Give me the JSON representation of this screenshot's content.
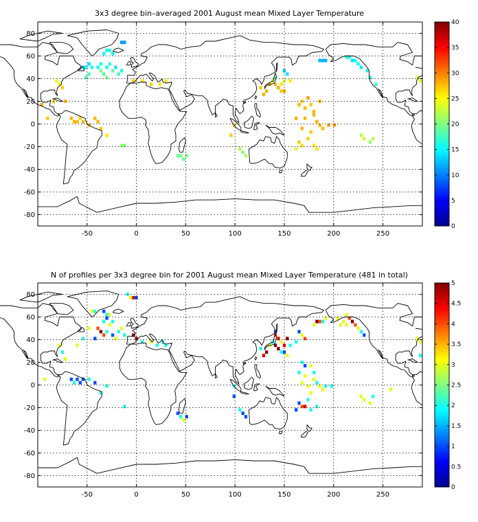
{
  "panels": [
    {
      "title": "3x3 degree bin–averaged 2001 August mean Mixed Layer Temperature",
      "colorbar": {
        "min": 0,
        "max": 40,
        "ticks": [
          0,
          5,
          10,
          15,
          20,
          25,
          30,
          35,
          40
        ],
        "labels": [
          "0",
          "5",
          "10",
          "15",
          "20",
          "25",
          "30",
          "35",
          "40"
        ]
      }
    },
    {
      "title": "N of profiles per 3x3 degree bin for 2001 August mean Mixed Layer Temperature  (481 in total)",
      "colorbar": {
        "min": 0,
        "max": 5,
        "ticks": [
          0,
          0.5,
          1,
          1.5,
          2,
          2.5,
          3,
          3.5,
          4,
          4.5,
          5
        ],
        "labels": [
          "0",
          "0.5",
          "1",
          "1.5",
          "2",
          "2.5",
          "3",
          "3.5",
          "4",
          "4.5",
          "5"
        ]
      }
    }
  ],
  "axes": {
    "xlim": [
      -100,
      290
    ],
    "ylim": [
      -90,
      90
    ],
    "xticks": [
      -50,
      0,
      50,
      100,
      150,
      200,
      250
    ],
    "xtick_labels": [
      "-50",
      "0",
      "50",
      "100",
      "150",
      "200",
      "250"
    ],
    "yticks": [
      -80,
      -60,
      -40,
      -20,
      0,
      20,
      40,
      60,
      80
    ],
    "ytick_labels": [
      "-80",
      "-60",
      "-40",
      "-20",
      "0",
      "20",
      "40",
      "60",
      "80"
    ],
    "grid": true
  },
  "colormap": "jet",
  "chart_data": [
    {
      "type": "heatmap",
      "title": "3x3 degree bin–averaged 2001 August mean Mixed Layer Temperature",
      "bin_size_deg": 3,
      "value_range": [
        0,
        40
      ],
      "cells": [
        [
          -30,
          65,
          16
        ],
        [
          -27,
          65,
          16
        ],
        [
          -33,
          62,
          15
        ],
        [
          -24,
          62,
          15
        ],
        [
          -12,
          72,
          11
        ],
        [
          -15,
          72,
          11
        ],
        [
          -48,
          53,
          14
        ],
        [
          -45,
          50,
          16
        ],
        [
          -39,
          50,
          15
        ],
        [
          -36,
          53,
          16
        ],
        [
          -30,
          50,
          15
        ],
        [
          -27,
          53,
          17
        ],
        [
          -21,
          50,
          14
        ],
        [
          -24,
          47,
          19
        ],
        [
          -33,
          44,
          18
        ],
        [
          -30,
          41,
          20
        ],
        [
          -18,
          44,
          17
        ],
        [
          -15,
          47,
          16
        ],
        [
          -51,
          50,
          15
        ],
        [
          -54,
          50,
          14
        ],
        [
          -48,
          44,
          18
        ],
        [
          -51,
          41,
          18
        ],
        [
          -36,
          47,
          20
        ],
        [
          -78,
          35,
          26
        ],
        [
          -75,
          32,
          27
        ],
        [
          -81,
          38,
          24
        ],
        [
          -72,
          20,
          28
        ],
        [
          -84,
          20,
          27
        ],
        [
          -96,
          17,
          28
        ],
        [
          -90,
          5,
          27
        ],
        [
          -66,
          5,
          28
        ],
        [
          -63,
          2,
          28
        ],
        [
          -60,
          2,
          28
        ],
        [
          -57,
          5,
          27
        ],
        [
          -54,
          2,
          28
        ],
        [
          -48,
          -1,
          28
        ],
        [
          -42,
          5,
          28
        ],
        [
          -39,
          2,
          28
        ],
        [
          -36,
          -4,
          27
        ],
        [
          -30,
          -10,
          26
        ],
        [
          -12,
          -19,
          20
        ],
        [
          -15,
          -19,
          21
        ],
        [
          -3,
          38,
          27
        ],
        [
          6,
          38,
          26
        ],
        [
          15,
          35,
          27
        ],
        [
          24,
          35,
          26
        ],
        [
          30,
          38,
          26
        ],
        [
          45,
          -28,
          20
        ],
        [
          42,
          -28,
          19
        ],
        [
          48,
          -31,
          19
        ],
        [
          51,
          -28,
          20
        ],
        [
          141,
          41,
          19
        ],
        [
          138,
          38,
          22
        ],
        [
          135,
          35,
          28
        ],
        [
          141,
          35,
          28
        ],
        [
          144,
          32,
          28
        ],
        [
          147,
          35,
          26
        ],
        [
          150,
          38,
          24
        ],
        [
          156,
          38,
          26
        ],
        [
          150,
          29,
          28
        ],
        [
          147,
          29,
          27
        ],
        [
          153,
          44,
          14
        ],
        [
          150,
          47,
          13
        ],
        [
          129,
          26,
          28
        ],
        [
          132,
          29,
          28
        ],
        [
          126,
          32,
          27
        ],
        [
          168,
          20,
          27
        ],
        [
          174,
          23,
          29
        ],
        [
          165,
          17,
          28
        ],
        [
          171,
          14,
          28
        ],
        [
          162,
          5,
          28
        ],
        [
          171,
          5,
          28
        ],
        [
          168,
          -4,
          28
        ],
        [
          180,
          8,
          28
        ],
        [
          183,
          2,
          28
        ],
        [
          186,
          -1,
          28
        ],
        [
          189,
          -4,
          28
        ],
        [
          195,
          -1,
          29
        ],
        [
          201,
          -1,
          29
        ],
        [
          177,
          -7,
          27
        ],
        [
          174,
          -13,
          27
        ],
        [
          165,
          -16,
          27
        ],
        [
          162,
          -22,
          24
        ],
        [
          168,
          -19,
          26
        ],
        [
          180,
          -19,
          26
        ],
        [
          183,
          -22,
          26
        ],
        [
          177,
          17,
          27
        ],
        [
          186,
          20,
          28
        ],
        [
          180,
          11,
          28
        ],
        [
          99,
          -1,
          27
        ],
        [
          96,
          -10,
          27
        ],
        [
          105,
          -22,
          22
        ],
        [
          108,
          -25,
          20
        ],
        [
          111,
          -28,
          22
        ],
        [
          186,
          56,
          12
        ],
        [
          192,
          56,
          12
        ],
        [
          189,
          56,
          12
        ],
        [
          222,
          56,
          15
        ],
        [
          225,
          53,
          15
        ],
        [
          228,
          50,
          14
        ],
        [
          216,
          59,
          15
        ],
        [
          219,
          56,
          14
        ],
        [
          213,
          59,
          16
        ],
        [
          237,
          41,
          16
        ],
        [
          243,
          35,
          17
        ],
        [
          234,
          47,
          16
        ],
        [
          285,
          41,
          23
        ],
        [
          288,
          38,
          24
        ],
        [
          228,
          -10,
          22
        ],
        [
          231,
          -13,
          23
        ],
        [
          237,
          -16,
          21
        ],
        [
          240,
          -13,
          22
        ]
      ]
    },
    {
      "type": "heatmap",
      "title": "N of profiles per 3x3 degree bin for 2001 August mean Mixed Layer Temperature  (481 in total)",
      "bin_size_deg": 3,
      "value_range": [
        0,
        5
      ],
      "total_profiles": 481,
      "cells": [
        [
          -3,
          77,
          4.5
        ],
        [
          0,
          77,
          1
        ],
        [
          -6,
          77,
          3
        ],
        [
          -9,
          80,
          2
        ],
        [
          -45,
          65,
          3
        ],
        [
          -42,
          65,
          2
        ],
        [
          -33,
          65,
          1
        ],
        [
          -30,
          62,
          2
        ],
        [
          -27,
          62,
          3
        ],
        [
          -30,
          59,
          1
        ],
        [
          -33,
          56,
          2
        ],
        [
          -24,
          56,
          2
        ],
        [
          -48,
          50,
          3
        ],
        [
          -39,
          50,
          4
        ],
        [
          -36,
          47,
          5
        ],
        [
          -33,
          44,
          4
        ],
        [
          -30,
          47,
          2
        ],
        [
          -27,
          53,
          3
        ],
        [
          -24,
          44,
          1
        ],
        [
          -18,
          47,
          2
        ],
        [
          -15,
          50,
          3
        ],
        [
          -12,
          44,
          2
        ],
        [
          -21,
          41,
          3
        ],
        [
          -42,
          41,
          1
        ],
        [
          -54,
          41,
          2
        ],
        [
          -60,
          35,
          3
        ],
        [
          -78,
          35,
          3
        ],
        [
          -75,
          29,
          2
        ],
        [
          -72,
          23,
          3
        ],
        [
          -93,
          5,
          3
        ],
        [
          -66,
          5,
          1
        ],
        [
          -63,
          2,
          2
        ],
        [
          -60,
          5,
          1
        ],
        [
          -57,
          2,
          1
        ],
        [
          -54,
          5,
          1
        ],
        [
          -48,
          5,
          2
        ],
        [
          -42,
          2,
          1
        ],
        [
          -36,
          -7,
          2
        ],
        [
          -30,
          -1,
          2
        ],
        [
          -12,
          -19,
          2
        ],
        [
          -3,
          44,
          5
        ],
        [
          0,
          41,
          5
        ],
        [
          6,
          38,
          2
        ],
        [
          15,
          38,
          3
        ],
        [
          21,
          35,
          2
        ],
        [
          27,
          38,
          2
        ],
        [
          30,
          35,
          2
        ],
        [
          45,
          -28,
          2
        ],
        [
          48,
          -31,
          3
        ],
        [
          51,
          -28,
          1
        ],
        [
          42,
          -25,
          1
        ],
        [
          141,
          47,
          1
        ],
        [
          141,
          44,
          4
        ],
        [
          144,
          41,
          4.5
        ],
        [
          138,
          38,
          2
        ],
        [
          135,
          35,
          3
        ],
        [
          141,
          35,
          5
        ],
        [
          144,
          32,
          5
        ],
        [
          147,
          38,
          3
        ],
        [
          150,
          35,
          4.5
        ],
        [
          153,
          41,
          5
        ],
        [
          156,
          35,
          2
        ],
        [
          150,
          29,
          1
        ],
        [
          147,
          29,
          2
        ],
        [
          153,
          26,
          3
        ],
        [
          129,
          26,
          4.5
        ],
        [
          132,
          29,
          5
        ],
        [
          126,
          32,
          2
        ],
        [
          165,
          47,
          1
        ],
        [
          168,
          44,
          3
        ],
        [
          171,
          41,
          4
        ],
        [
          162,
          38,
          2
        ],
        [
          183,
          56,
          5
        ],
        [
          186,
          56,
          4
        ],
        [
          189,
          56,
          2
        ],
        [
          180,
          53,
          3
        ],
        [
          192,
          59,
          3
        ],
        [
          213,
          62,
          3
        ],
        [
          216,
          59,
          4
        ],
        [
          219,
          56,
          5
        ],
        [
          222,
          53,
          4
        ],
        [
          225,
          50,
          3
        ],
        [
          228,
          47,
          2
        ],
        [
          231,
          44,
          1
        ],
        [
          210,
          56,
          3
        ],
        [
          207,
          53,
          3
        ],
        [
          213,
          53,
          3
        ],
        [
          204,
          59,
          3
        ],
        [
          168,
          20,
          2
        ],
        [
          171,
          17,
          1
        ],
        [
          165,
          11,
          2
        ],
        [
          171,
          8,
          3
        ],
        [
          168,
          2,
          3
        ],
        [
          174,
          -1,
          3
        ],
        [
          180,
          5,
          3
        ],
        [
          183,
          2,
          2
        ],
        [
          186,
          -1,
          3
        ],
        [
          189,
          -4,
          3
        ],
        [
          192,
          -1,
          2
        ],
        [
          198,
          -1,
          2
        ],
        [
          177,
          -7,
          3
        ],
        [
          174,
          -13,
          2
        ],
        [
          165,
          -16,
          1
        ],
        [
          162,
          -22,
          1
        ],
        [
          168,
          -19,
          4
        ],
        [
          171,
          -19,
          4.5
        ],
        [
          177,
          -22,
          2
        ],
        [
          183,
          -19,
          2
        ],
        [
          180,
          11,
          2
        ],
        [
          177,
          17,
          3
        ],
        [
          99,
          -1,
          2
        ],
        [
          99,
          -10,
          1
        ],
        [
          105,
          -22,
          2
        ],
        [
          108,
          -25,
          1
        ],
        [
          111,
          -28,
          1
        ],
        [
          285,
          41,
          3
        ],
        [
          288,
          38,
          3
        ],
        [
          288,
          26,
          2
        ],
        [
          228,
          -10,
          3
        ],
        [
          231,
          -13,
          3
        ],
        [
          237,
          -16,
          3
        ],
        [
          240,
          -10,
          2
        ],
        [
          258,
          -4,
          3
        ]
      ]
    }
  ]
}
